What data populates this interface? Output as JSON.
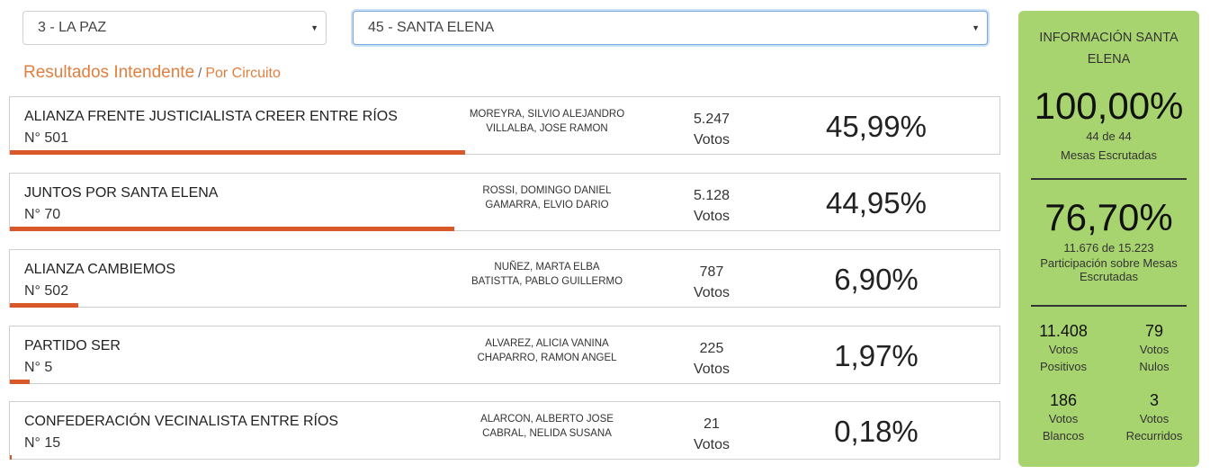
{
  "selects": {
    "department": "3 - LA PAZ",
    "circuit": "45 - SANTA ELENA"
  },
  "heading": {
    "main": "Resultados Intendente",
    "separator": "/",
    "sub": "Por Circuito"
  },
  "results": [
    {
      "party": "ALIANZA FRENTE JUSTICIALISTA CREER ENTRE RÍOS",
      "number": "N° 501",
      "candidate1": "MOREYRA, SILVIO ALEJANDRO",
      "candidate2": "VILLALBA, JOSE RAMON",
      "votes": "5.247",
      "votes_label": "Votos",
      "percent": "45,99%",
      "share": 45.99
    },
    {
      "party": "JUNTOS POR SANTA ELENA",
      "number": "N° 70",
      "candidate1": "ROSSI, DOMINGO DANIEL",
      "candidate2": "GAMARRA, ELVIO DARIO",
      "votes": "5.128",
      "votes_label": "Votos",
      "percent": "44,95%",
      "share": 44.95
    },
    {
      "party": "ALIANZA CAMBIEMOS",
      "number": "N° 502",
      "candidate1": "NUÑEZ, MARTA ELBA",
      "candidate2": "BATISTTA, PABLO GUILLERMO",
      "votes": "787",
      "votes_label": "Votos",
      "percent": "6,90%",
      "share": 6.9
    },
    {
      "party": "PARTIDO SER",
      "number": "N° 5",
      "candidate1": "ALVAREZ, ALICIA VANINA",
      "candidate2": "CHAPARRO, RAMON ANGEL",
      "votes": "225",
      "votes_label": "Votos",
      "percent": "1,97%",
      "share": 1.97
    },
    {
      "party": "CONFEDERACIÓN VECINALISTA ENTRE RÍOS",
      "number": "N° 15",
      "candidate1": "ALARCON, ALBERTO JOSE",
      "candidate2": "CABRAL, NELIDA SUSANA",
      "votes": "21",
      "votes_label": "Votos",
      "percent": "0,18%",
      "share": 0.18
    }
  ],
  "info": {
    "title": "INFORMACIÓN SANTA ELENA",
    "tables_pct": "100,00%",
    "tables_count": "44 de 44",
    "tables_label": "Mesas Escrutadas",
    "participation_pct": "76,70%",
    "participation_count": "11.676 de 15.223",
    "participation_label": "Participación sobre Mesas Escrutadas",
    "stats": [
      {
        "value": "11.408",
        "label1": "Votos",
        "label2": "Positivos"
      },
      {
        "value": "79",
        "label1": "Votos",
        "label2": "Nulos"
      },
      {
        "value": "186",
        "label1": "Votos",
        "label2": "Blancos"
      },
      {
        "value": "3",
        "label1": "Votos",
        "label2": "Recurridos"
      }
    ]
  },
  "colors": {
    "accent": "#e07f3f",
    "bar": "#d9582a",
    "panel": "#a8d46f"
  }
}
